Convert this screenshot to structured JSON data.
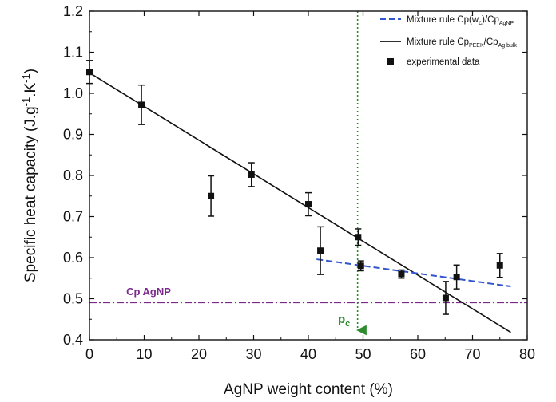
{
  "chart_data": {
    "type": "scatter",
    "xlabel": "AgNP weight content (%)",
    "ylabel_parts": [
      "Specific heat capacity (J.g",
      "-1",
      ".K",
      "-1",
      ")"
    ],
    "xlim": [
      0,
      80
    ],
    "ylim": [
      0.4,
      1.2
    ],
    "xticks": [
      0,
      10,
      20,
      30,
      40,
      50,
      60,
      70,
      80
    ],
    "yticks": [
      0.4,
      0.5,
      0.6,
      0.7,
      0.8,
      0.9,
      1.0,
      1.1,
      1.2
    ],
    "xtick_labels": [
      "0",
      "10",
      "20",
      "30",
      "40",
      "50",
      "60",
      "70",
      "80"
    ],
    "ytick_labels": [
      "0.4",
      "0.5",
      "0.6",
      "0.7",
      "0.8",
      "0.9",
      "1.0",
      "1.1",
      "1.2"
    ],
    "grid": false,
    "legend_placement": "top-right",
    "series": [
      {
        "kind": "points",
        "legend_label": "experimental data",
        "color": "#111111",
        "points": [
          {
            "x": 0,
            "y": 1.052,
            "err": 0.028
          },
          {
            "x": 9.5,
            "y": 0.972,
            "err": 0.048
          },
          {
            "x": 22.2,
            "y": 0.75,
            "err": 0.049
          },
          {
            "x": 29.6,
            "y": 0.802,
            "err": 0.029
          },
          {
            "x": 40.0,
            "y": 0.73,
            "err": 0.028
          },
          {
            "x": 42.2,
            "y": 0.617,
            "err": 0.058
          },
          {
            "x": 49.1,
            "y": 0.65,
            "err": 0.02
          },
          {
            "x": 49.6,
            "y": 0.58,
            "err": 0.012
          },
          {
            "x": 57.0,
            "y": 0.56,
            "err": 0.01
          },
          {
            "x": 65.1,
            "y": 0.502,
            "err": 0.04
          },
          {
            "x": 67.1,
            "y": 0.553,
            "err": 0.029
          },
          {
            "x": 75.0,
            "y": 0.581,
            "err": 0.029
          }
        ]
      },
      {
        "kind": "line",
        "legend_label": [
          "Mixture rule Cp",
          "PEEK",
          "/Cp",
          "Ag bulk"
        ],
        "color": "#111111",
        "dash": "solid",
        "points": [
          [
            0,
            1.05
          ],
          [
            77.0,
            0.418
          ]
        ]
      },
      {
        "kind": "line",
        "legend_label": [
          "Mixture rule Cp(w",
          "c",
          ")/Cp",
          "AgNP"
        ],
        "color": "#3355cc",
        "dash": "dashed",
        "points": [
          [
            41.5,
            0.596
          ],
          [
            77.0,
            0.53
          ]
        ]
      }
    ],
    "reference_lines": [
      {
        "orientation": "horizontal",
        "value": 0.491,
        "color": "#7b2a8c",
        "style": "dashdot",
        "label": "Cp AgNP"
      },
      {
        "orientation": "vertical",
        "value": 49.0,
        "color": "#2e8b2e",
        "style": "dotted",
        "label": [
          "p",
          "c"
        ]
      }
    ]
  }
}
